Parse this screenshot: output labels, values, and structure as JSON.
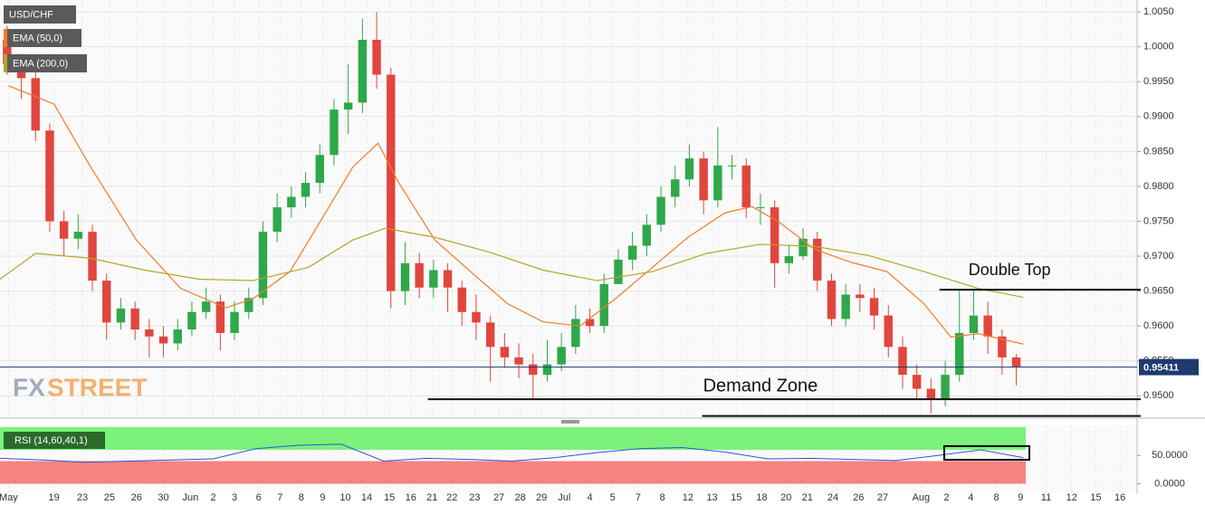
{
  "chart_data": [
    {
      "type": "candlestick",
      "title": "USD/CHF",
      "open": [
        1.001,
        0.9975,
        0.9955,
        0.988,
        0.975,
        0.9725,
        0.9735,
        0.9665,
        0.9605,
        0.9625,
        0.9595,
        0.9585,
        0.9575,
        0.9595,
        0.962,
        0.9635,
        0.959,
        0.962,
        0.964,
        0.9735,
        0.977,
        0.9785,
        0.9805,
        0.9845,
        0.991,
        0.992,
        1.001,
        0.996,
        0.965,
        0.969,
        0.9655,
        0.968,
        0.9655,
        0.962,
        0.9605,
        0.957,
        0.9555,
        0.9545,
        0.953,
        0.9545,
        0.957,
        0.961,
        0.96,
        0.966,
        0.9695,
        0.9715,
        0.9745,
        0.9785,
        0.981,
        0.984,
        0.978,
        0.983,
        0.983,
        0.977,
        0.977,
        0.969,
        0.97,
        0.9725,
        0.9665,
        0.961,
        0.9645,
        0.964,
        0.9615,
        0.957,
        0.953,
        0.951,
        0.9495,
        0.953,
        0.959,
        0.9615,
        0.9585,
        0.9555
      ],
      "high": [
        1.003,
        0.999,
        0.9965,
        0.989,
        0.9765,
        0.976,
        0.9745,
        0.9675,
        0.964,
        0.9635,
        0.961,
        0.96,
        0.961,
        0.9635,
        0.9655,
        0.9645,
        0.9635,
        0.9655,
        0.975,
        0.979,
        0.98,
        0.982,
        0.986,
        0.9925,
        0.9975,
        1.004,
        1.005,
        0.997,
        0.972,
        0.9705,
        0.9695,
        0.969,
        0.9665,
        0.9645,
        0.9615,
        0.959,
        0.9575,
        0.956,
        0.958,
        0.959,
        0.963,
        0.9625,
        0.9675,
        0.971,
        0.9735,
        0.976,
        0.98,
        0.983,
        0.986,
        0.985,
        0.9885,
        0.9845,
        0.984,
        0.979,
        0.978,
        0.9715,
        0.974,
        0.9735,
        0.9675,
        0.966,
        0.966,
        0.9655,
        0.963,
        0.9585,
        0.9545,
        0.9525,
        0.955,
        0.965,
        0.965,
        0.9635,
        0.9595,
        0.956
      ],
      "low": [
        0.996,
        0.9925,
        0.9865,
        0.9735,
        0.97,
        0.971,
        0.965,
        0.958,
        0.9595,
        0.958,
        0.9555,
        0.9555,
        0.9565,
        0.9585,
        0.961,
        0.9565,
        0.958,
        0.961,
        0.963,
        0.972,
        0.9755,
        0.977,
        0.979,
        0.983,
        0.9875,
        0.9905,
        0.994,
        0.9625,
        0.963,
        0.964,
        0.964,
        0.962,
        0.96,
        0.958,
        0.952,
        0.954,
        0.9525,
        0.9495,
        0.952,
        0.9535,
        0.956,
        0.959,
        0.959,
        0.966,
        0.968,
        0.97,
        0.9735,
        0.977,
        0.98,
        0.976,
        0.977,
        0.981,
        0.9755,
        0.9745,
        0.9655,
        0.9675,
        0.9695,
        0.965,
        0.96,
        0.96,
        0.962,
        0.9595,
        0.9555,
        0.951,
        0.9495,
        0.9475,
        0.9485,
        0.952,
        0.958,
        0.956,
        0.953,
        0.9515
      ],
      "close": [
        0.9975,
        0.9955,
        0.988,
        0.975,
        0.9725,
        0.9735,
        0.9665,
        0.9605,
        0.9625,
        0.9595,
        0.9585,
        0.9575,
        0.9595,
        0.962,
        0.9635,
        0.959,
        0.962,
        0.964,
        0.9735,
        0.977,
        0.9785,
        0.9805,
        0.9845,
        0.991,
        0.992,
        1.001,
        0.996,
        0.965,
        0.969,
        0.9655,
        0.968,
        0.9655,
        0.962,
        0.9605,
        0.957,
        0.9555,
        0.9545,
        0.953,
        0.9545,
        0.957,
        0.961,
        0.96,
        0.966,
        0.9695,
        0.9715,
        0.9745,
        0.9785,
        0.981,
        0.984,
        0.978,
        0.983,
        0.983,
        0.977,
        0.977,
        0.969,
        0.97,
        0.9725,
        0.9665,
        0.961,
        0.9645,
        0.964,
        0.9615,
        0.957,
        0.953,
        0.951,
        0.9495,
        0.953,
        0.959,
        0.9615,
        0.9585,
        0.9555,
        0.9541
      ],
      "up_color": "#2ea84a",
      "down_color": "#e0463e",
      "series": [
        {
          "name": "EMA (50,0)",
          "color": "#ef7d28",
          "x": [
            0.6,
            3.8,
            6.4,
            9.6,
            12.7,
            15.9,
            17.8,
            20.4,
            22.9,
            24.8,
            26.6,
            28.0,
            30.6,
            33.1,
            35.7,
            38.2,
            40.8,
            43.3,
            45.9,
            48.4,
            51.0,
            52.9,
            54.8,
            57.3,
            59.9,
            62.4,
            65.0,
            66.9,
            68.8,
            72.0
          ],
          "values": [
            0.9944,
            0.9918,
            0.9827,
            0.9723,
            0.9654,
            0.9626,
            0.9639,
            0.9678,
            0.9762,
            0.9827,
            0.9862,
            0.9807,
            0.9723,
            0.9678,
            0.9632,
            0.9606,
            0.96,
            0.9639,
            0.9684,
            0.9727,
            0.9762,
            0.9771,
            0.9749,
            0.971,
            0.9691,
            0.9678,
            0.9632,
            0.9584,
            0.9589,
            0.9574
          ]
        },
        {
          "name": "EMA (200,0)",
          "color": "#b5a52a",
          "x": [
            0,
            2.5,
            6.4,
            10.2,
            14.0,
            17.8,
            21.7,
            24.8,
            27.1,
            30.6,
            34.4,
            38.2,
            42.0,
            45.9,
            49.7,
            53.5,
            57.3,
            61.1,
            65.0,
            68.8,
            72.0
          ],
          "values": [
            0.9667,
            0.9704,
            0.9697,
            0.968,
            0.9667,
            0.9665,
            0.9684,
            0.9723,
            0.974,
            0.9727,
            0.9706,
            0.968,
            0.9665,
            0.9678,
            0.9704,
            0.9717,
            0.9714,
            0.9701,
            0.9678,
            0.9654,
            0.9641
          ]
        }
      ],
      "xlim": [
        0,
        80
      ],
      "xticks": [
        {
          "value": 0.6,
          "label": "May"
        },
        {
          "value": 3.8,
          "label": "19"
        },
        {
          "value": 5.8,
          "label": "23"
        },
        {
          "value": 7.7,
          "label": "25"
        },
        {
          "value": 9.6,
          "label": "26"
        },
        {
          "value": 11.5,
          "label": "30"
        },
        {
          "value": 13.4,
          "label": "Jun"
        },
        {
          "value": 15.0,
          "label": "2"
        },
        {
          "value": 16.5,
          "label": "3"
        },
        {
          "value": 18.2,
          "label": "6"
        },
        {
          "value": 19.7,
          "label": "7"
        },
        {
          "value": 21.2,
          "label": "8"
        },
        {
          "value": 22.7,
          "label": "9"
        },
        {
          "value": 24.3,
          "label": "10"
        },
        {
          "value": 25.8,
          "label": "14"
        },
        {
          "value": 27.4,
          "label": "15"
        },
        {
          "value": 28.9,
          "label": "16"
        },
        {
          "value": 30.4,
          "label": "21"
        },
        {
          "value": 31.8,
          "label": "22"
        },
        {
          "value": 33.4,
          "label": "23"
        },
        {
          "value": 35.1,
          "label": "27"
        },
        {
          "value": 36.6,
          "label": "28"
        },
        {
          "value": 38.1,
          "label": "29"
        },
        {
          "value": 39.7,
          "label": "Jul"
        },
        {
          "value": 41.5,
          "label": "4"
        },
        {
          "value": 43.1,
          "label": "5"
        },
        {
          "value": 44.9,
          "label": "7"
        },
        {
          "value": 46.6,
          "label": "8"
        },
        {
          "value": 48.4,
          "label": "12"
        },
        {
          "value": 50.1,
          "label": "13"
        },
        {
          "value": 51.8,
          "label": "15"
        },
        {
          "value": 53.6,
          "label": "18"
        },
        {
          "value": 55.3,
          "label": "20"
        },
        {
          "value": 56.8,
          "label": "21"
        },
        {
          "value": 58.6,
          "label": "24"
        },
        {
          "value": 60.4,
          "label": "26"
        },
        {
          "value": 62.1,
          "label": "27"
        },
        {
          "value": 64.8,
          "label": "Aug"
        },
        {
          "value": 66.6,
          "label": "2"
        },
        {
          "value": 68.3,
          "label": "4"
        },
        {
          "value": 70.1,
          "label": "8"
        },
        {
          "value": 71.8,
          "label": "9"
        },
        {
          "value": 73.6,
          "label": "11"
        },
        {
          "value": 75.4,
          "label": "12"
        },
        {
          "value": 77.1,
          "label": "15"
        },
        {
          "value": 78.8,
          "label": "16"
        }
      ],
      "ylim": [
        0.9468,
        1.0067
      ],
      "yticks": [
        {
          "value": 1.005,
          "label": "1.0050"
        },
        {
          "value": 1.0,
          "label": "1.0000"
        },
        {
          "value": 0.995,
          "label": "0.9950"
        },
        {
          "value": 0.99,
          "label": "0.9900"
        },
        {
          "value": 0.985,
          "label": "0.9850"
        },
        {
          "value": 0.98,
          "label": "0.9800"
        },
        {
          "value": 0.975,
          "label": "0.9750"
        },
        {
          "value": 0.97,
          "label": "0.9700"
        },
        {
          "value": 0.965,
          "label": "0.9650"
        },
        {
          "value": 0.96,
          "label": "0.9600"
        },
        {
          "value": 0.955,
          "label": "0.9550"
        },
        {
          "value": 0.95,
          "label": "0.9500"
        }
      ],
      "grid": true,
      "last_price": {
        "value": 0.95411,
        "label": "0.95411"
      },
      "annotations": [
        {
          "text": "Double Top",
          "level": 0.9652,
          "x_start": 66.1
        },
        {
          "text": "Demand Zone",
          "level": 0.9495,
          "x_start": 30.1
        },
        {
          "level": 0.9471,
          "x_start": 49.4
        }
      ],
      "watermark": [
        "FX",
        "STREET"
      ]
    },
    {
      "type": "line",
      "name": "RSI (14,60,40,1)",
      "color": "#2f55d4",
      "x": [
        0,
        3,
        6,
        9,
        12,
        15,
        18,
        21,
        24,
        27,
        30,
        33,
        36,
        39,
        42,
        45,
        48,
        51,
        54,
        57,
        60,
        63,
        66,
        69,
        72
      ],
      "values": [
        45,
        42,
        38,
        40,
        42,
        44,
        62,
        68,
        70,
        40,
        45,
        43,
        40,
        46,
        55,
        62,
        64,
        56,
        44,
        45,
        43,
        41,
        50,
        60,
        46
      ],
      "xlim": [
        0,
        80
      ],
      "ylim": [
        0,
        100
      ],
      "yticks": [
        {
          "value": 50,
          "label": "50.0000"
        },
        {
          "value": 0,
          "label": "0.0000"
        }
      ],
      "upper": 60,
      "lower": 40,
      "upper_color": "#7cf27c",
      "lower_color": "#f78282"
    }
  ]
}
